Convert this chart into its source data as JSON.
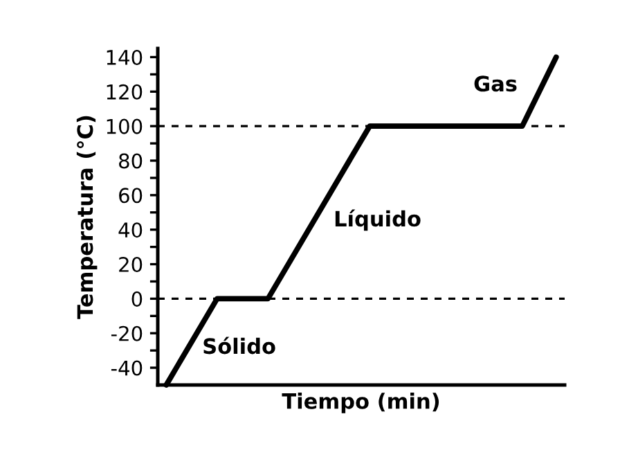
{
  "chart_data": {
    "type": "line",
    "xlabel": "Tiempo (min)",
    "ylabel": "Temperatura (°C)",
    "categories": [
      null,
      null,
      null,
      null,
      null,
      null,
      null,
      null,
      null,
      null,
      null,
      null,
      null,
      null,
      null,
      null,
      null,
      null,
      null,
      null,
      null,
      null,
      null,
      null
    ],
    "values": [
      -50,
      null,
      null,
      0,
      null,
      null,
      0,
      null,
      null,
      null,
      null,
      null,
      100,
      null,
      null,
      null,
      null,
      null,
      null,
      null,
      null,
      100,
      null,
      140
    ],
    "color": "#000000",
    "marker": "none",
    "line_style": "solid",
    "ylim": [
      -50,
      145
    ],
    "yticks": [
      -40,
      {
        "value": -30,
        "label": null
      },
      -20,
      {
        "value": -10,
        "label": null
      },
      0,
      {
        "value": 10,
        "label": null
      },
      20,
      {
        "value": 30,
        "label": null
      },
      40,
      {
        "value": 50,
        "label": null
      },
      60,
      {
        "value": 70,
        "label": null
      },
      80,
      {
        "value": 90,
        "label": null
      },
      100,
      {
        "value": 110,
        "label": null
      },
      120,
      {
        "value": 130,
        "label": null
      },
      140
    ],
    "tick_labels": "y",
    "grid": false,
    "legend": false,
    "ref_lines": [
      {
        "axis": "y",
        "value": 0,
        "line_style": "dashed",
        "color": "#000000"
      },
      {
        "axis": "y",
        "value": 100,
        "line_style": "dashed",
        "color": "#000000"
      }
    ],
    "annotations": [
      "Sólido",
      "Líquido",
      "Gas"
    ]
  }
}
